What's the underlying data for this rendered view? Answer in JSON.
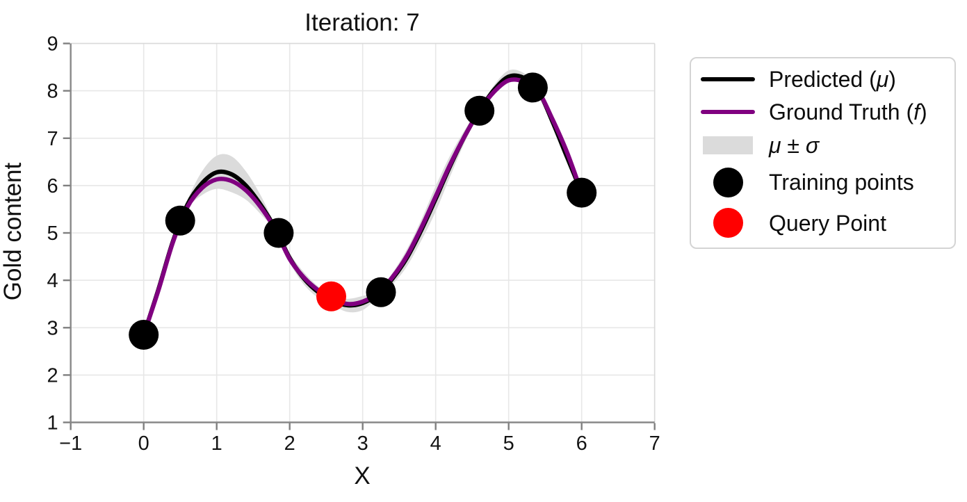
{
  "chart_data": {
    "type": "line",
    "title": "Iteration: 7",
    "xlabel": "X",
    "ylabel": "Gold content",
    "xlim": [
      -1,
      7
    ],
    "ylim": [
      1,
      9
    ],
    "xticks": [
      -1,
      0,
      1,
      2,
      3,
      4,
      5,
      6,
      7
    ],
    "yticks": [
      1,
      2,
      3,
      4,
      5,
      6,
      7,
      8,
      9
    ],
    "grid": true,
    "legend_position": "outside upper right",
    "x": [
      0.0,
      0.2,
      0.4,
      0.6,
      0.8,
      1.0,
      1.2,
      1.4,
      1.6,
      1.8,
      2.0,
      2.2,
      2.4,
      2.6,
      2.8,
      3.0,
      3.2,
      3.4,
      3.6,
      3.8,
      4.0,
      4.2,
      4.4,
      4.6,
      4.8,
      5.0,
      5.2,
      5.4,
      5.6,
      5.8,
      6.0
    ],
    "series": [
      {
        "name": "Predicted (μ)",
        "color": "#000000",
        "values": [
          2.85,
          3.8,
          4.82,
          5.6,
          6.05,
          6.28,
          6.24,
          6.0,
          5.6,
          5.1,
          4.47,
          4.03,
          3.74,
          3.56,
          3.47,
          3.52,
          3.7,
          4.02,
          4.46,
          5.05,
          5.72,
          6.42,
          7.05,
          7.58,
          8.02,
          8.3,
          8.28,
          8.02,
          7.35,
          6.6,
          5.85
        ]
      },
      {
        "name": "Ground Truth (f)",
        "color": "#800080",
        "values": [
          2.85,
          3.78,
          4.8,
          5.55,
          5.95,
          6.13,
          6.1,
          5.9,
          5.55,
          5.08,
          4.45,
          4.05,
          3.78,
          3.6,
          3.5,
          3.55,
          3.72,
          4.05,
          4.5,
          5.1,
          5.77,
          6.45,
          7.05,
          7.58,
          7.98,
          8.22,
          8.2,
          8.0,
          7.4,
          6.7,
          5.85
        ]
      }
    ],
    "band": {
      "name": "μ ± σ",
      "color": "#dbdbdb",
      "sigma": [
        0.04,
        0.12,
        0.08,
        0.1,
        0.25,
        0.35,
        0.38,
        0.3,
        0.2,
        0.07,
        0.1,
        0.13,
        0.12,
        0.1,
        0.14,
        0.15,
        0.07,
        0.12,
        0.18,
        0.22,
        0.27,
        0.22,
        0.13,
        0.05,
        0.1,
        0.13,
        0.1,
        0.06,
        0.09,
        0.11,
        0.04
      ]
    },
    "training_points": {
      "name": "Training points",
      "color": "#000000",
      "marker_radius_px": 21.5,
      "points": [
        [
          0.0,
          2.85
        ],
        [
          0.5,
          5.26
        ],
        [
          1.85,
          5.0
        ],
        [
          3.25,
          3.75
        ],
        [
          4.6,
          7.58
        ],
        [
          5.33,
          8.07
        ],
        [
          6.0,
          5.85
        ]
      ]
    },
    "query_point": {
      "name": "Query Point",
      "color": "#ff0000",
      "marker_radius_px": 21.5,
      "point": [
        2.57,
        3.66
      ]
    },
    "legend": {
      "items": [
        {
          "marker": "line",
          "color": "#000000",
          "segments": [
            {
              "t": "Predicted ("
            },
            {
              "t": "μ",
              "italic": true
            },
            {
              "t": ")"
            }
          ]
        },
        {
          "marker": "line",
          "color": "#800080",
          "segments": [
            {
              "t": "Ground Truth ("
            },
            {
              "t": "f",
              "italic": true
            },
            {
              "t": ")"
            }
          ]
        },
        {
          "marker": "band",
          "color": "#dbdbdb",
          "segments": [
            {
              "t": "μ",
              "italic": true
            },
            {
              "t": " ± "
            },
            {
              "t": "σ",
              "italic": true
            }
          ]
        },
        {
          "marker": "dot",
          "color": "#000000",
          "segments": [
            {
              "t": "Training points"
            }
          ]
        },
        {
          "marker": "dot",
          "color": "#ff0000",
          "segments": [
            {
              "t": "Query Point"
            }
          ]
        }
      ]
    },
    "style_colors": {
      "grid": "#e7e7e7",
      "spine_main": "#888888",
      "spine_secondary": "#d9d9d9",
      "tick_label": "#141414",
      "background": "#ffffff"
    }
  }
}
